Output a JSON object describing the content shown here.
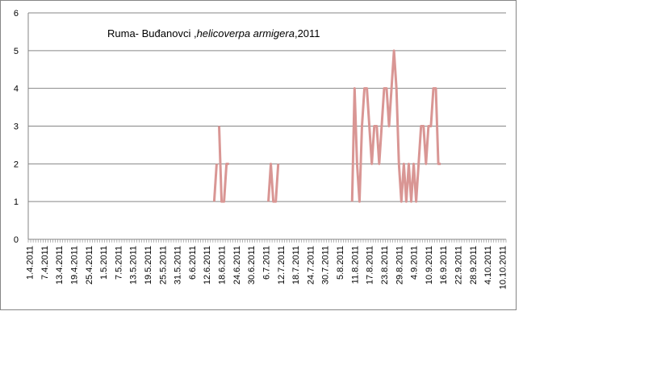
{
  "chart_data": {
    "type": "line",
    "title_parts": [
      {
        "text": "Ruma- Buđanovci ,",
        "italic": false
      },
      {
        "text": "helicoverpa armigera",
        "italic": true
      },
      {
        "text": ",2011",
        "italic": false
      }
    ],
    "xlabel": "",
    "ylabel": "",
    "ylim": [
      0,
      6
    ],
    "yticks": [
      "0",
      "1",
      "2",
      "3",
      "4",
      "5",
      "6"
    ],
    "grid": true,
    "legend": "none",
    "line_color": "#d99694",
    "x_start": "2011-04-01",
    "x_end": "2011-10-12",
    "x_tick_labels": [
      "1.4.2011",
      "7.4.2011",
      "13.4.2011",
      "19.4.2011",
      "25.4.2011",
      "1.5.2011",
      "7.5.2011",
      "13.5.2011",
      "19.5.2011",
      "25.5.2011",
      "31.5.2011",
      "6.6.2011",
      "12.6.2011",
      "18.6.2011",
      "24.6.2011",
      "30.6.2011",
      "6.7.2011",
      "12.7.2011",
      "18.7.2011",
      "24.7.2011",
      "30.7.2011",
      "5.8.2011",
      "11.8.2011",
      "17.8.2011",
      "23.8.2011",
      "29.8.2011",
      "4.9.2011",
      "10.9.2011",
      "16.9.2011",
      "22.9.2011",
      "28.9.2011",
      "4.10.2011",
      "10.10.2011"
    ],
    "series": [
      {
        "segments": [
          [
            [
              "2011-06-15",
              1
            ],
            [
              "2011-06-16",
              2
            ]
          ],
          [
            [
              "2011-06-17",
              3
            ],
            [
              "2011-06-18",
              1
            ],
            [
              "2011-06-19",
              1
            ],
            [
              "2011-06-20",
              2
            ],
            [
              "2011-06-21",
              2
            ]
          ],
          [
            [
              "2011-07-07",
              1
            ],
            [
              "2011-07-08",
              2
            ],
            [
              "2011-07-09",
              1
            ],
            [
              "2011-07-10",
              1
            ],
            [
              "2011-07-11",
              2
            ]
          ],
          [
            [
              "2011-08-10",
              1
            ],
            [
              "2011-08-11",
              4
            ],
            [
              "2011-08-12",
              2
            ],
            [
              "2011-08-13",
              1
            ],
            [
              "2011-08-14",
              3
            ],
            [
              "2011-08-15",
              4
            ],
            [
              "2011-08-16",
              4
            ],
            [
              "2011-08-17",
              3
            ],
            [
              "2011-08-18",
              2
            ],
            [
              "2011-08-19",
              3
            ],
            [
              "2011-08-20",
              3
            ],
            [
              "2011-08-21",
              2
            ],
            [
              "2011-08-22",
              3
            ],
            [
              "2011-08-23",
              4
            ],
            [
              "2011-08-24",
              4
            ],
            [
              "2011-08-25",
              3
            ],
            [
              "2011-08-26",
              4
            ],
            [
              "2011-08-27",
              5
            ],
            [
              "2011-08-28",
              4
            ],
            [
              "2011-08-29",
              2
            ],
            [
              "2011-08-30",
              1
            ],
            [
              "2011-08-31",
              2
            ],
            [
              "2011-09-01",
              1
            ],
            [
              "2011-09-02",
              2
            ],
            [
              "2011-09-03",
              1
            ],
            [
              "2011-09-04",
              2
            ],
            [
              "2011-09-05",
              1
            ],
            [
              "2011-09-06",
              2
            ],
            [
              "2011-09-07",
              3
            ],
            [
              "2011-09-08",
              3
            ],
            [
              "2011-09-09",
              2
            ],
            [
              "2011-09-10",
              3
            ],
            [
              "2011-09-11",
              3
            ],
            [
              "2011-09-12",
              4
            ],
            [
              "2011-09-13",
              4
            ],
            [
              "2011-09-14",
              2
            ],
            [
              "2011-09-15",
              2
            ]
          ]
        ]
      }
    ]
  }
}
